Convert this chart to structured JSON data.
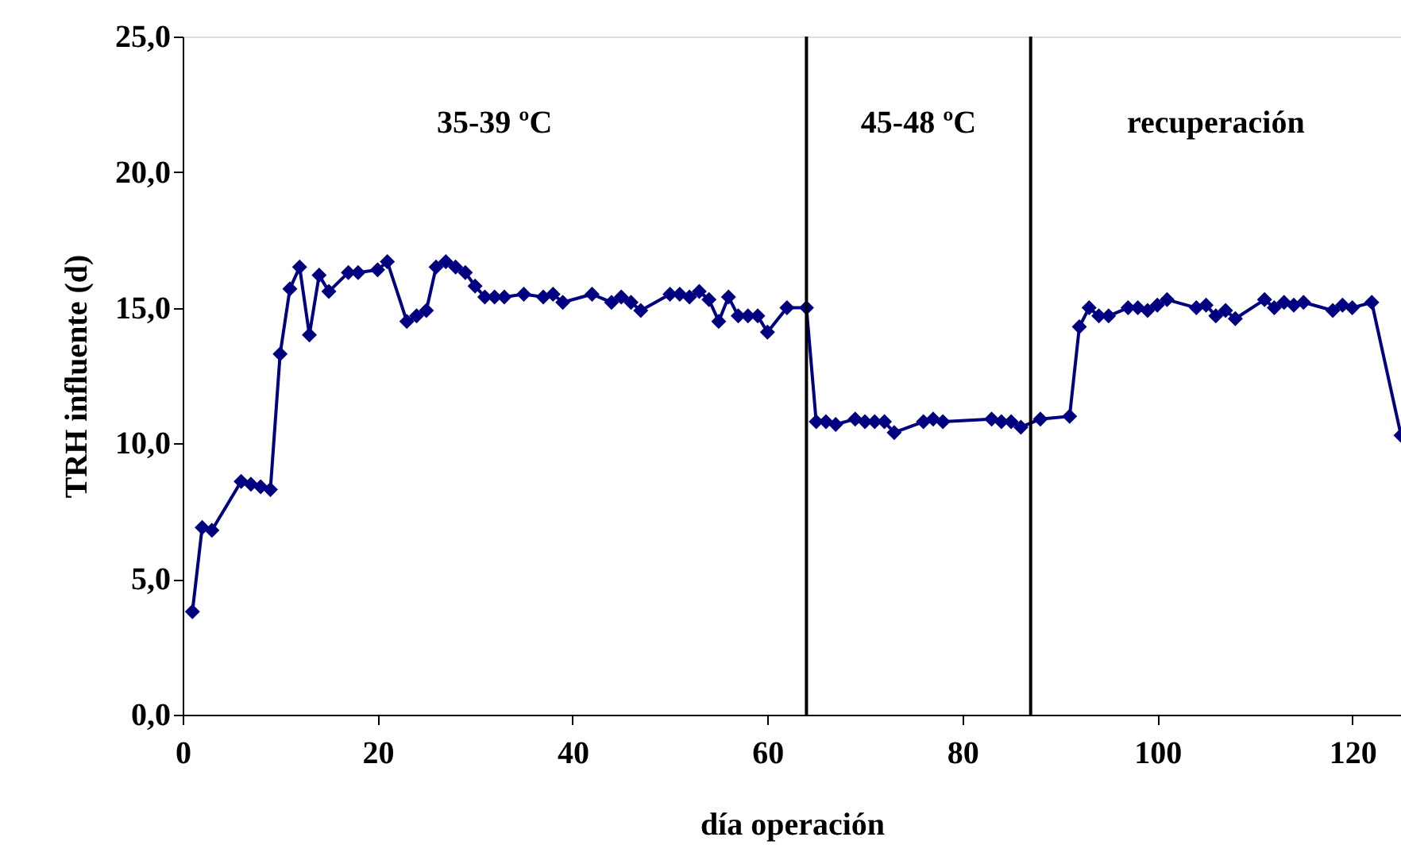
{
  "chart_data": {
    "type": "line",
    "xlabel": "día operación",
    "ylabel": "TRH influente (d)",
    "x": [
      1,
      2,
      3,
      6,
      7,
      8,
      9,
      10,
      11,
      12,
      13,
      14,
      15,
      17,
      18,
      20,
      21,
      23,
      24,
      25,
      26,
      27,
      28,
      29,
      30,
      31,
      32,
      33,
      35,
      37,
      38,
      39,
      42,
      44,
      45,
      46,
      47,
      50,
      51,
      52,
      53,
      54,
      55,
      56,
      57,
      58,
      59,
      60,
      62,
      64,
      65,
      66,
      67,
      69,
      70,
      71,
      72,
      73,
      76,
      77,
      78,
      83,
      84,
      85,
      86,
      88,
      91,
      92,
      93,
      94,
      95,
      97,
      98,
      99,
      100,
      101,
      104,
      105,
      106,
      107,
      108,
      111,
      112,
      113,
      114,
      115,
      118,
      119,
      120,
      122,
      125
    ],
    "series": [
      {
        "color": "#000080",
        "values": [
          3.8,
          6.9,
          6.8,
          8.6,
          8.5,
          8.4,
          8.3,
          13.3,
          15.7,
          16.5,
          14.0,
          16.2,
          15.6,
          16.3,
          16.3,
          16.4,
          16.7,
          14.5,
          14.7,
          14.9,
          16.5,
          16.7,
          16.5,
          16.3,
          15.8,
          15.4,
          15.4,
          15.4,
          15.5,
          15.4,
          15.5,
          15.2,
          15.5,
          15.2,
          15.4,
          15.2,
          14.9,
          15.5,
          15.5,
          15.4,
          15.6,
          15.3,
          14.5,
          15.4,
          14.7,
          14.7,
          14.7,
          14.1,
          15.0,
          15.0,
          10.8,
          10.8,
          10.7,
          10.9,
          10.8,
          10.8,
          10.8,
          10.4,
          10.8,
          10.9,
          10.8,
          10.9,
          10.8,
          10.8,
          10.6,
          10.9,
          11.0,
          14.3,
          15.0,
          14.7,
          14.7,
          15.0,
          15.0,
          14.9,
          15.1,
          15.3,
          15.0,
          15.1,
          14.7,
          14.9,
          14.6,
          15.3,
          15.0,
          15.2,
          15.1,
          15.2,
          14.9,
          15.1,
          15.0,
          15.2,
          10.3
        ]
      }
    ],
    "xlim": [
      0,
      125
    ],
    "xticks": [
      0,
      20,
      40,
      60,
      80,
      100,
      120
    ],
    "ylim": [
      0,
      25
    ],
    "yticks": [
      {
        "value": 0,
        "label": "0,0"
      },
      {
        "value": 5,
        "label": "5,0"
      },
      {
        "value": 10,
        "label": "10,0"
      },
      {
        "value": 15,
        "label": "15,0"
      },
      {
        "value": 20,
        "label": "20,0"
      },
      {
        "value": 25,
        "label": "25,0"
      }
    ],
    "ref_lines": [
      {
        "axis": "x",
        "value": 64,
        "color": "#000000"
      },
      {
        "axis": "x",
        "value": 87,
        "color": "#000000"
      }
    ],
    "annotations": [
      "35-39 ºC",
      "45-48 ºC",
      "recuperación"
    ],
    "marker": "diamond",
    "line_style": "solid",
    "grid": false
  }
}
